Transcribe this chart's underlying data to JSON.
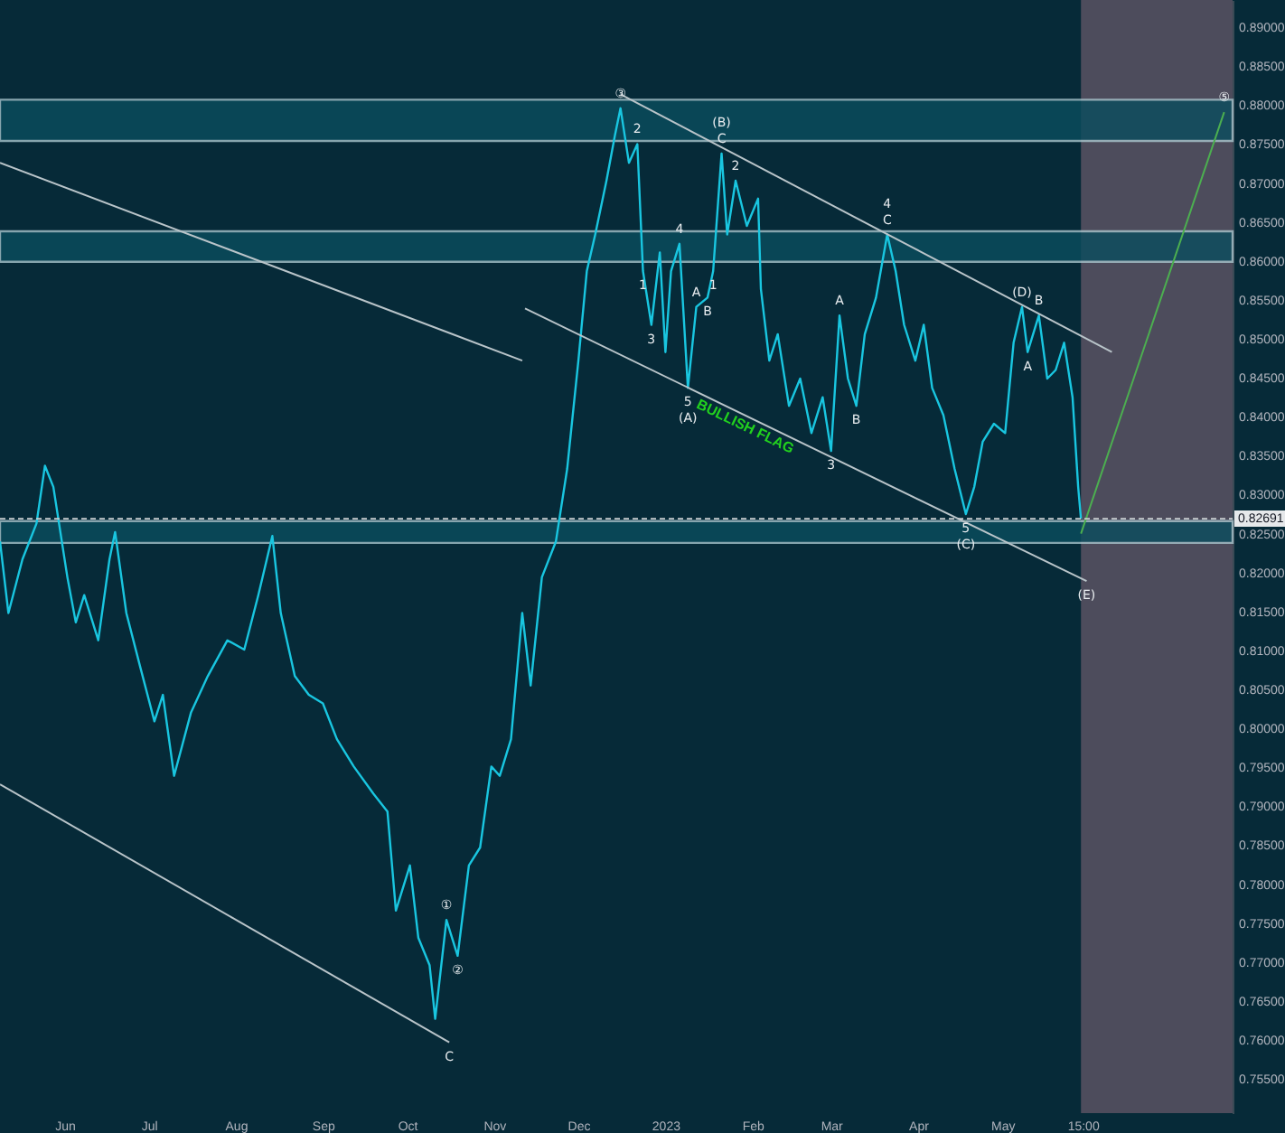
{
  "chart_data": {
    "type": "line",
    "legend": false,
    "xlim": [
      "2022-05-09",
      "2023-07-22"
    ],
    "ylim": [
      0.7506,
      0.8935
    ],
    "xticks": [
      {
        "value": "2022-06-01",
        "label": "Jun"
      },
      {
        "value": "2022-07-01",
        "label": "Jul"
      },
      {
        "value": "2022-08-01",
        "label": "Aug"
      },
      {
        "value": "2022-09-01",
        "label": "Sep"
      },
      {
        "value": "2022-10-01",
        "label": "Oct"
      },
      {
        "value": "2022-11-01",
        "label": "Nov"
      },
      {
        "value": "2022-12-01",
        "label": "Dec"
      },
      {
        "value": "2023-01-01",
        "label": "2023"
      },
      {
        "value": "2023-02-01",
        "label": "Feb"
      },
      {
        "value": "2023-03-01",
        "label": "Mar"
      },
      {
        "value": "2023-04-01",
        "label": "Apr"
      },
      {
        "value": "2023-05-01",
        "label": "May"
      },
      {
        "value": "2023-05-29T15:00",
        "label": "15:00"
      }
    ],
    "yticks": [
      {
        "value": 0.755,
        "label": "0.75500"
      },
      {
        "value": 0.76,
        "label": "0.76000"
      },
      {
        "value": 0.765,
        "label": "0.76500"
      },
      {
        "value": 0.77,
        "label": "0.77000"
      },
      {
        "value": 0.775,
        "label": "0.77500"
      },
      {
        "value": 0.78,
        "label": "0.78000"
      },
      {
        "value": 0.785,
        "label": "0.78500"
      },
      {
        "value": 0.79,
        "label": "0.79000"
      },
      {
        "value": 0.795,
        "label": "0.79500"
      },
      {
        "value": 0.8,
        "label": "0.80000"
      },
      {
        "value": 0.805,
        "label": "0.80500"
      },
      {
        "value": 0.81,
        "label": "0.81000"
      },
      {
        "value": 0.815,
        "label": "0.81500"
      },
      {
        "value": 0.82,
        "label": "0.82000"
      },
      {
        "value": 0.825,
        "label": "0.82500"
      },
      {
        "value": 0.83,
        "label": "0.83000"
      },
      {
        "value": 0.835,
        "label": "0.83500"
      },
      {
        "value": 0.84,
        "label": "0.84000"
      },
      {
        "value": 0.845,
        "label": "0.84500"
      },
      {
        "value": 0.85,
        "label": "0.85000"
      },
      {
        "value": 0.855,
        "label": "0.85500"
      },
      {
        "value": 0.86,
        "label": "0.86000"
      },
      {
        "value": 0.865,
        "label": "0.86500"
      },
      {
        "value": 0.87,
        "label": "0.87000"
      },
      {
        "value": 0.875,
        "label": "0.87500"
      },
      {
        "value": 0.88,
        "label": "0.88000"
      },
      {
        "value": 0.885,
        "label": "0.88500"
      },
      {
        "value": 0.89,
        "label": "0.89000"
      }
    ],
    "series": [
      {
        "color": "#19c6e0",
        "x": [
          "2022-05-09",
          "2022-05-12",
          "2022-05-17",
          "2022-05-22",
          "2022-05-25",
          "2022-05-28",
          "2022-06-02",
          "2022-06-05",
          "2022-06-08",
          "2022-06-13",
          "2022-06-17",
          "2022-06-19",
          "2022-06-23",
          "2022-06-28",
          "2022-07-03",
          "2022-07-06",
          "2022-07-10",
          "2022-07-16",
          "2022-07-22",
          "2022-07-29",
          "2022-08-04",
          "2022-08-09",
          "2022-08-14",
          "2022-08-17",
          "2022-08-22",
          "2022-08-27",
          "2022-09-01",
          "2022-09-06",
          "2022-09-12",
          "2022-09-19",
          "2022-09-24",
          "2022-09-27",
          "2022-10-02",
          "2022-10-05",
          "2022-10-09",
          "2022-10-11",
          "2022-10-15",
          "2022-10-19",
          "2022-10-23",
          "2022-10-27",
          "2022-10-31",
          "2022-11-03",
          "2022-11-07",
          "2022-11-11",
          "2022-11-14",
          "2022-11-18",
          "2022-11-23",
          "2022-11-27",
          "2022-12-01",
          "2022-12-04",
          "2022-12-07",
          "2022-12-11",
          "2022-12-14",
          "2022-12-16",
          "2022-12-19",
          "2022-12-22",
          "2022-12-24",
          "2022-12-27",
          "2022-12-30",
          "2023-01-01",
          "2023-01-03",
          "2023-01-06",
          "2023-01-09",
          "2023-01-12",
          "2023-01-16",
          "2023-01-18",
          "2023-01-21",
          "2023-01-23",
          "2023-01-26",
          "2023-01-30",
          "2023-02-03",
          "2023-02-04",
          "2023-02-07",
          "2023-02-10",
          "2023-02-14",
          "2023-02-18",
          "2023-02-22",
          "2023-02-26",
          "2023-03-01",
          "2023-03-04",
          "2023-03-07",
          "2023-03-10",
          "2023-03-13",
          "2023-03-17",
          "2023-03-21",
          "2023-03-24",
          "2023-03-27",
          "2023-03-31",
          "2023-04-03",
          "2023-04-06",
          "2023-04-10",
          "2023-04-14",
          "2023-04-18",
          "2023-04-21",
          "2023-04-24",
          "2023-04-28",
          "2023-05-02",
          "2023-05-05",
          "2023-05-08",
          "2023-05-10",
          "2023-05-14",
          "2023-05-17",
          "2023-05-20",
          "2023-05-23",
          "2023-05-26",
          "2023-05-28",
          "2023-05-29"
        ],
        "values": [
          0.824,
          0.8148,
          0.8217,
          0.8263,
          0.8337,
          0.831,
          0.8194,
          0.8136,
          0.8171,
          0.8113,
          0.8217,
          0.8252,
          0.8148,
          0.8078,
          0.8009,
          0.8043,
          0.7939,
          0.802,
          0.8067,
          0.8113,
          0.8101,
          0.8171,
          0.8247,
          0.8148,
          0.8067,
          0.8043,
          0.8032,
          0.7986,
          0.7951,
          0.7916,
          0.7893,
          0.7766,
          0.7824,
          0.7731,
          0.7696,
          0.7627,
          0.7754,
          0.7708,
          0.7824,
          0.7847,
          0.7951,
          0.7939,
          0.7986,
          0.8148,
          0.8055,
          0.8194,
          0.824,
          0.8333,
          0.8472,
          0.8587,
          0.8634,
          0.8703,
          0.8761,
          0.8796,
          0.8726,
          0.875,
          0.8587,
          0.8518,
          0.8611,
          0.8483,
          0.8587,
          0.8622,
          0.8437,
          0.8541,
          0.8553,
          0.8587,
          0.8738,
          0.8634,
          0.8703,
          0.8645,
          0.868,
          0.8564,
          0.8472,
          0.8506,
          0.8414,
          0.8449,
          0.8379,
          0.8425,
          0.8356,
          0.853,
          0.8449,
          0.8414,
          0.8506,
          0.8553,
          0.8634,
          0.8587,
          0.8518,
          0.8472,
          0.8518,
          0.8437,
          0.8402,
          0.8333,
          0.8275,
          0.831,
          0.8368,
          0.8391,
          0.8379,
          0.8495,
          0.8541,
          0.8483,
          0.853,
          0.8449,
          0.846,
          0.8495,
          0.8425,
          0.831,
          0.8269
        ]
      },
      {
        "color": "#b9c4c9",
        "x": [
          "2022-05-09",
          "2022-11-11"
        ],
        "values": [
          0.8726,
          0.8472
        ]
      },
      {
        "color": "#b9c4c9",
        "x": [
          "2022-12-16",
          "2023-06-09"
        ],
        "values": [
          0.8814,
          0.8483
        ]
      },
      {
        "name": "BULLISH FLAG",
        "color": "#b9c4c9",
        "x": [
          "2022-11-12",
          "2023-05-31"
        ],
        "values": [
          0.8539,
          0.8189
        ]
      },
      {
        "color": "#b9c4c9",
        "x": [
          "2022-05-09",
          "2022-10-16"
        ],
        "values": [
          0.7928,
          0.7597
        ]
      },
      {
        "color": "#4caf50",
        "x": [
          "2023-05-29",
          "2023-07-19"
        ],
        "values": [
          0.825,
          0.8791
        ]
      }
    ],
    "bands": [
      {
        "axis": "x",
        "from": "2023-05-29",
        "to": "2023-07-22",
        "color": "#514e5e"
      },
      {
        "axis": "y",
        "from": 0.8754,
        "to": 0.8807,
        "color": "#0a4d5e"
      },
      {
        "axis": "y",
        "from": 0.8599,
        "to": 0.8638,
        "color": "#0a4d5e"
      },
      {
        "axis": "y",
        "from": 0.8238,
        "to": 0.8266,
        "color": "#0a4d5e"
      }
    ],
    "ref_lines": [
      {
        "axis": "y",
        "value": 0.82691,
        "label": "0.82691",
        "color": "#c8cdd0",
        "line_style": "dashed"
      }
    ],
    "annotations": [
      {
        "text": "③",
        "x": "2022-12-16",
        "y": 0.8796
      },
      {
        "text": "2",
        "x": "2022-12-22",
        "y": 0.875
      },
      {
        "text": "1",
        "x": "2022-12-24",
        "y": 0.8587
      },
      {
        "text": "4",
        "x": "2023-01-06",
        "y": 0.8622
      },
      {
        "text": "A",
        "x": "2023-01-12",
        "y": 0.8541
      },
      {
        "text": "3",
        "x": "2022-12-27",
        "y": 0.8518
      },
      {
        "text": "5",
        "x": "2023-01-09",
        "y": 0.8437
      },
      {
        "text": "(A)",
        "x": "2023-01-09",
        "y": 0.8437
      },
      {
        "text": "B",
        "x": "2023-01-16",
        "y": 0.8553
      },
      {
        "text": "1",
        "x": "2023-01-18",
        "y": 0.8587
      },
      {
        "text": "C",
        "x": "2023-01-21",
        "y": 0.8738
      },
      {
        "text": "(B)",
        "x": "2023-01-21",
        "y": 0.8738
      },
      {
        "text": "2",
        "x": "2023-01-26",
        "y": 0.8703
      },
      {
        "text": "A",
        "x": "2023-03-04",
        "y": 0.853
      },
      {
        "text": "B",
        "x": "2023-03-10",
        "y": 0.8414
      },
      {
        "text": "3",
        "x": "2023-03-01",
        "y": 0.8356
      },
      {
        "text": "C",
        "x": "2023-03-21",
        "y": 0.8634
      },
      {
        "text": "4",
        "x": "2023-03-21",
        "y": 0.8634
      },
      {
        "text": "5",
        "x": "2023-04-18",
        "y": 0.8275
      },
      {
        "text": "(C)",
        "x": "2023-04-18",
        "y": 0.8275
      },
      {
        "text": "(D)",
        "x": "2023-05-08",
        "y": 0.8541
      },
      {
        "text": "B",
        "x": "2023-05-14",
        "y": 0.853
      },
      {
        "text": "A",
        "x": "2023-05-10",
        "y": 0.8483
      },
      {
        "text": "(E)",
        "x": "2023-05-31",
        "y": 0.8189
      },
      {
        "text": "⑤",
        "x": "2023-07-19",
        "y": 0.8791
      },
      {
        "text": "①",
        "x": "2022-10-15",
        "y": 0.7754
      },
      {
        "text": "②",
        "x": "2022-10-19",
        "y": 0.7708
      },
      {
        "text": "C",
        "x": "2022-10-16",
        "y": 0.7597
      }
    ]
  }
}
